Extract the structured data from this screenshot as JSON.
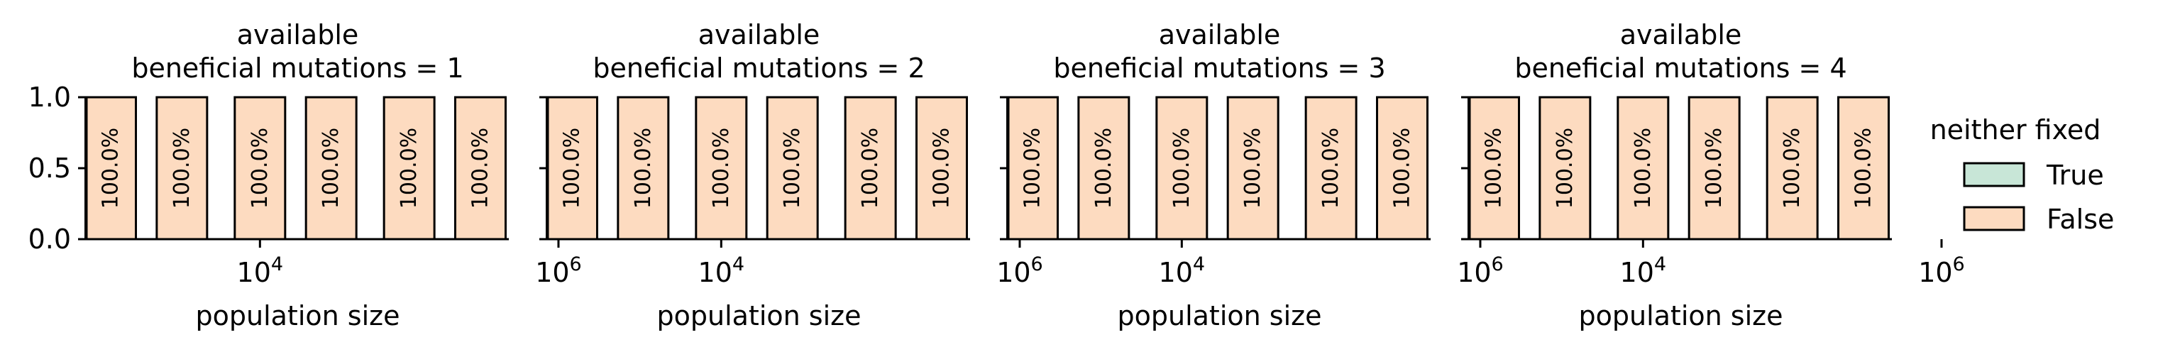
{
  "chart_data": {
    "type": "bar",
    "stacked": true,
    "normalized": true,
    "x_scale": "log",
    "xlabel": "population size",
    "x_tick_labels": [
      "10^4",
      "10^6"
    ],
    "x_tick_parts": [
      {
        "base": "10",
        "exp": "4",
        "value": 10000
      },
      {
        "base": "10",
        "exp": "6",
        "value": 1000000
      }
    ],
    "categories": [
      1000,
      3000,
      10000,
      30000,
      100000,
      300000
    ],
    "ylabel": "",
    "ylim": [
      0,
      1
    ],
    "y_tick_labels": [
      "0.0",
      "0.5",
      "1.0"
    ],
    "y_ticks": [
      0,
      0.5,
      1.0
    ],
    "legend": {
      "title": "neither fixed",
      "placement": "right",
      "entries": [
        "True",
        "False"
      ]
    },
    "colors": {
      "True": "#c8e6d7",
      "False": "#fddbc0",
      "edge": "#000000"
    },
    "panels": [
      {
        "title_line1": "available",
        "title_line2": "beneficial mutations = 1",
        "series": [
          {
            "name": "True",
            "values": [
              0,
              0,
              0,
              0,
              0,
              0
            ]
          },
          {
            "name": "False",
            "values": [
              1,
              1,
              1,
              1,
              1,
              1
            ]
          }
        ],
        "bar_labels": [
          "100.0%",
          "100.0%",
          "100.0%",
          "100.0%",
          "100.0%",
          "100.0%"
        ]
      },
      {
        "title_line1": "available",
        "title_line2": "beneficial mutations = 2",
        "series": [
          {
            "name": "True",
            "values": [
              0,
              0,
              0,
              0,
              0,
              0
            ]
          },
          {
            "name": "False",
            "values": [
              1,
              1,
              1,
              1,
              1,
              1
            ]
          }
        ],
        "bar_labels": [
          "100.0%",
          "100.0%",
          "100.0%",
          "100.0%",
          "100.0%",
          "100.0%"
        ]
      },
      {
        "title_line1": "available",
        "title_line2": "beneficial mutations = 3",
        "series": [
          {
            "name": "True",
            "values": [
              0,
              0,
              0,
              0,
              0,
              0
            ]
          },
          {
            "name": "False",
            "values": [
              1,
              1,
              1,
              1,
              1,
              1
            ]
          }
        ],
        "bar_labels": [
          "100.0%",
          "100.0%",
          "100.0%",
          "100.0%",
          "100.0%",
          "100.0%"
        ]
      },
      {
        "title_line1": "available",
        "title_line2": "beneficial mutations = 4",
        "series": [
          {
            "name": "True",
            "values": [
              0,
              0,
              0,
              0,
              0,
              0
            ]
          },
          {
            "name": "False",
            "values": [
              1,
              1,
              1,
              1,
              1,
              1
            ]
          }
        ],
        "bar_labels": [
          "100.0%",
          "100.0%",
          "100.0%",
          "100.0%",
          "100.0%",
          "100.0%"
        ]
      }
    ]
  }
}
